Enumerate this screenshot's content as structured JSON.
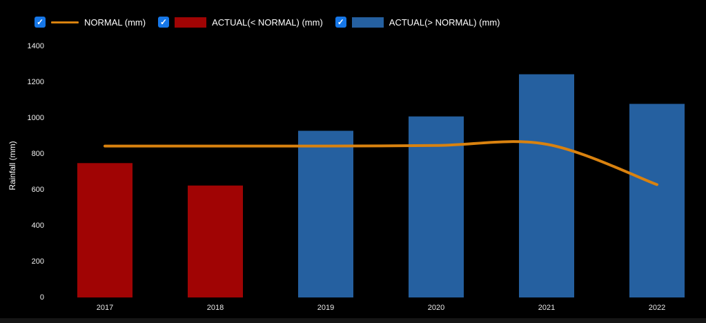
{
  "legend": {
    "items": [
      {
        "label": "NORMAL (mm)",
        "swatch": "line",
        "checked": true
      },
      {
        "label": "ACTUAL(< NORMAL) (mm)",
        "swatch": "rect_below",
        "checked": true
      },
      {
        "label": "ACTUAL(> NORMAL) (mm)",
        "swatch": "rect_above",
        "checked": true
      }
    ],
    "checkmark": "✓"
  },
  "colors": {
    "background": "#000000",
    "checkbox_blue": "#1677e8",
    "line": "#D9820F",
    "below_normal": "#A00404",
    "above_normal": "#2560A0",
    "tick_text": "#f2f2f2"
  },
  "chart_data": {
    "type": "bar",
    "title": "",
    "xlabel": "",
    "ylabel": "Rainfall (mm)",
    "ylim": [
      0,
      1400
    ],
    "ytick_step": 200,
    "ytick_labels": [
      "0",
      "200",
      "400",
      "600",
      "800",
      "1000",
      "1200",
      "1400"
    ],
    "grid": false,
    "legend_position": "top",
    "categories": [
      "2017",
      "2018",
      "2019",
      "2020",
      "2021",
      "2022"
    ],
    "series": [
      {
        "name": "NORMAL (mm)",
        "type": "line",
        "values": [
          840,
          840,
          840,
          843,
          850,
          625
        ]
      },
      {
        "name": "ACTUAL (mm)",
        "type": "bar",
        "values": [
          745,
          620,
          925,
          1005,
          1240,
          1075
        ],
        "status": [
          "below",
          "below",
          "above",
          "above",
          "above",
          "above"
        ]
      }
    ]
  }
}
